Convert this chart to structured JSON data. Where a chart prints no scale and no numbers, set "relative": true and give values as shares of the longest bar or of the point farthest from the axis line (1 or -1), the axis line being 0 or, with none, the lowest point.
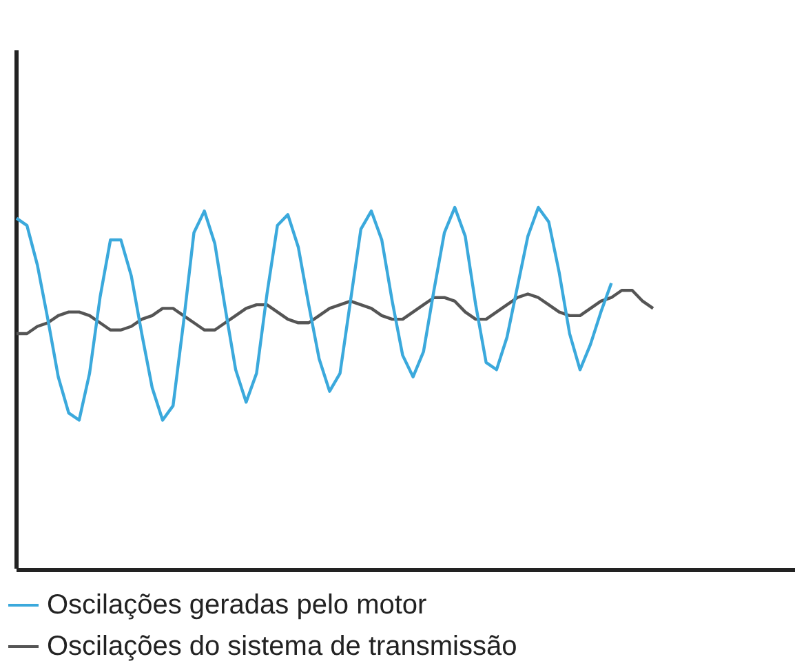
{
  "chart_data": {
    "type": "line",
    "relative": true,
    "legend": "bottom",
    "marker": "none",
    "categories": [
      null,
      null,
      null,
      null,
      null,
      null,
      null,
      null,
      null,
      null,
      null,
      null,
      null,
      null,
      null,
      null,
      null,
      null,
      null,
      null,
      null,
      null,
      null,
      null,
      null,
      null,
      null,
      null,
      null,
      null,
      null,
      null,
      null,
      null,
      null,
      null,
      null,
      null,
      null,
      null,
      null,
      null,
      null,
      null,
      null,
      null,
      null,
      null,
      null,
      null,
      null,
      null,
      null,
      null,
      null,
      null,
      null,
      null,
      null,
      null,
      null,
      null
    ],
    "series": [
      {
        "name": "Oscilações geradas pelo motor",
        "color": "#3ba9dc",
        "values": [
          0.97,
          0.95,
          0.84,
          0.69,
          0.53,
          0.43,
          0.41,
          0.54,
          0.75,
          0.91,
          0.91,
          0.81,
          0.65,
          0.5,
          0.41,
          0.45,
          0.68,
          0.93,
          0.99,
          0.9,
          0.72,
          0.55,
          0.46,
          0.54,
          0.76,
          0.95,
          0.98,
          0.89,
          0.73,
          0.58,
          0.49,
          0.54,
          0.74,
          0.94,
          0.99,
          0.91,
          0.74,
          0.59,
          0.53,
          0.6,
          0.77,
          0.93,
          1.0,
          0.92,
          0.73,
          0.57,
          0.55,
          0.64,
          0.78,
          0.92,
          1.0,
          0.96,
          0.82,
          0.65,
          0.55,
          0.62,
          0.71,
          0.79,
          null,
          null,
          null,
          null
        ]
      },
      {
        "name": "Oscilações do sistema de transmissão",
        "color": "#555555",
        "values": [
          0.65,
          0.65,
          0.67,
          0.68,
          0.7,
          0.71,
          0.71,
          0.7,
          0.68,
          0.66,
          0.66,
          0.67,
          0.69,
          0.7,
          0.72,
          0.72,
          0.7,
          0.68,
          0.66,
          0.66,
          0.68,
          0.7,
          0.72,
          0.73,
          0.73,
          0.71,
          0.69,
          0.68,
          0.68,
          0.7,
          0.72,
          0.73,
          0.74,
          0.73,
          0.72,
          0.7,
          0.69,
          0.69,
          0.71,
          0.73,
          0.75,
          0.75,
          0.74,
          0.71,
          0.69,
          0.69,
          0.71,
          0.73,
          0.75,
          0.76,
          0.75,
          0.73,
          0.71,
          0.7,
          0.7,
          0.72,
          0.74,
          0.75,
          0.77,
          0.77,
          0.74,
          0.72
        ]
      }
    ]
  }
}
